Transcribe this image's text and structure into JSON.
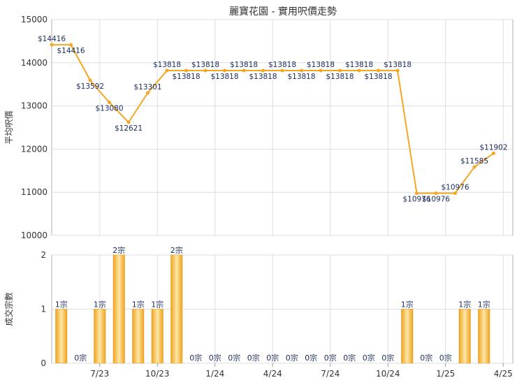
{
  "chart_data": [
    {
      "type": "line",
      "title": "麗寶花園 - 實用呎價走勢",
      "ylabel": "平均呎價",
      "ylim": [
        10000,
        15000
      ],
      "yticks": [
        10000,
        11000,
        12000,
        13000,
        14000,
        15000
      ],
      "x_tick_labels": [
        "7/23",
        "10/23",
        "1/24",
        "4/24",
        "7/24",
        "10/24",
        "1/25",
        "4/25"
      ],
      "x_tick_month_index": [
        2,
        5,
        8,
        11,
        14,
        17,
        20,
        23
      ],
      "x_month_range": [
        -0.5,
        23.5
      ],
      "grid": true,
      "color": "#f5a623",
      "points": [
        {
          "m": -0.5,
          "value": 14416,
          "label": "$14416"
        },
        {
          "m": 0.5,
          "value": 14416,
          "label": "$14416"
        },
        {
          "m": 1.5,
          "value": 13592,
          "label": "$13592"
        },
        {
          "m": 2.5,
          "value": 13080,
          "label": "$13080"
        },
        {
          "m": 3.5,
          "value": 12621,
          "label": "$12621"
        },
        {
          "m": 4.5,
          "value": 13301,
          "label": "$13301"
        },
        {
          "m": 5.5,
          "value": 13818,
          "label": "$13818"
        },
        {
          "m": 6.5,
          "value": 13818,
          "label": "$13818"
        },
        {
          "m": 7.5,
          "value": 13818,
          "label": "$13818"
        },
        {
          "m": 8.5,
          "value": 13818,
          "label": "$13818"
        },
        {
          "m": 9.5,
          "value": 13818,
          "label": "$13818"
        },
        {
          "m": 10.5,
          "value": 13818,
          "label": "$13818"
        },
        {
          "m": 11.5,
          "value": 13818,
          "label": "$13818"
        },
        {
          "m": 12.5,
          "value": 13818,
          "label": "$13818"
        },
        {
          "m": 13.5,
          "value": 13818,
          "label": "$13818"
        },
        {
          "m": 14.5,
          "value": 13818,
          "label": "$13818"
        },
        {
          "m": 15.5,
          "value": 13818,
          "label": "$13818"
        },
        {
          "m": 16.5,
          "value": 13818,
          "label": "$13818"
        },
        {
          "m": 17.5,
          "value": 13818,
          "label": "$13818"
        },
        {
          "m": 18.5,
          "value": 10976,
          "label": "$10976"
        },
        {
          "m": 19.5,
          "value": 10976,
          "label": "$10976"
        },
        {
          "m": 20.5,
          "value": 10976,
          "label": "$10976"
        },
        {
          "m": 21.5,
          "value": 11585,
          "label": "$11585"
        },
        {
          "m": 22.5,
          "value": 11902,
          "label": "$11902"
        }
      ],
      "label_pos": [
        "a",
        "b",
        "b",
        "b",
        "b",
        "a",
        "a",
        "b",
        "a",
        "b",
        "a",
        "b",
        "a",
        "b",
        "a",
        "b",
        "a",
        "b",
        "a",
        "b",
        "b",
        "a",
        "a",
        "a"
      ]
    },
    {
      "type": "bar",
      "ylabel": "成交宗數",
      "ylim": [
        0,
        2
      ],
      "yticks": [
        0,
        1,
        2
      ],
      "x_tick_labels": [
        "7/23",
        "10/23",
        "1/24",
        "4/24",
        "7/24",
        "10/24",
        "1/25",
        "4/25"
      ],
      "x_tick_month_index": [
        2,
        5,
        8,
        11,
        14,
        17,
        20,
        23
      ],
      "x_month_range": [
        -0.5,
        23.5
      ],
      "grid": true,
      "color": "#f5a623",
      "values": [
        1,
        0,
        1,
        2,
        1,
        1,
        2,
        0,
        0,
        0,
        0,
        0,
        0,
        0,
        0,
        0,
        0,
        0,
        1,
        0,
        0,
        1,
        1
      ],
      "labels": [
        "1宗",
        "0宗",
        "1宗",
        "2宗",
        "1宗",
        "1宗",
        "2宗",
        "0宗",
        "0宗",
        "0宗",
        "0宗",
        "0宗",
        "0宗",
        "0宗",
        "0宗",
        "0宗",
        "0宗",
        "0宗",
        "1宗",
        "0宗",
        "0宗",
        "1宗",
        "1宗"
      ]
    }
  ]
}
